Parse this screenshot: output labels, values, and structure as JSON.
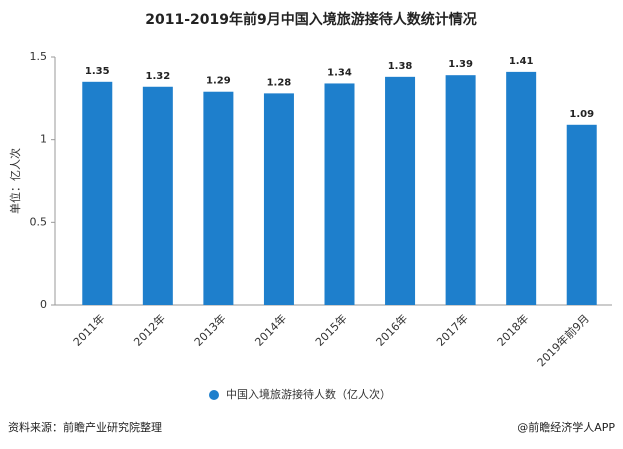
{
  "chart_data": {
    "type": "bar",
    "title": "2011-2019年前9月中国入境旅游接待人数统计情况",
    "y_label": "单位：亿人次",
    "categories": [
      "2011年",
      "2012年",
      "2013年",
      "2014年",
      "2015年",
      "2016年",
      "2017年",
      "2018年",
      "2019年前9月"
    ],
    "series": [
      {
        "name": "中国入境旅游接待人数（亿人次）",
        "color": "#1e7fcc",
        "values": [
          1.35,
          1.32,
          1.29,
          1.28,
          1.34,
          1.38,
          1.39,
          1.41,
          1.09
        ]
      }
    ],
    "ylim": [
      0,
      1.5
    ],
    "yticks": [
      0,
      0.5,
      1,
      1.5
    ],
    "grid": false,
    "legend": "bottom",
    "source": "资料来源：前瞻产业研究院整理",
    "credit": "@前瞻经济学人APP"
  }
}
